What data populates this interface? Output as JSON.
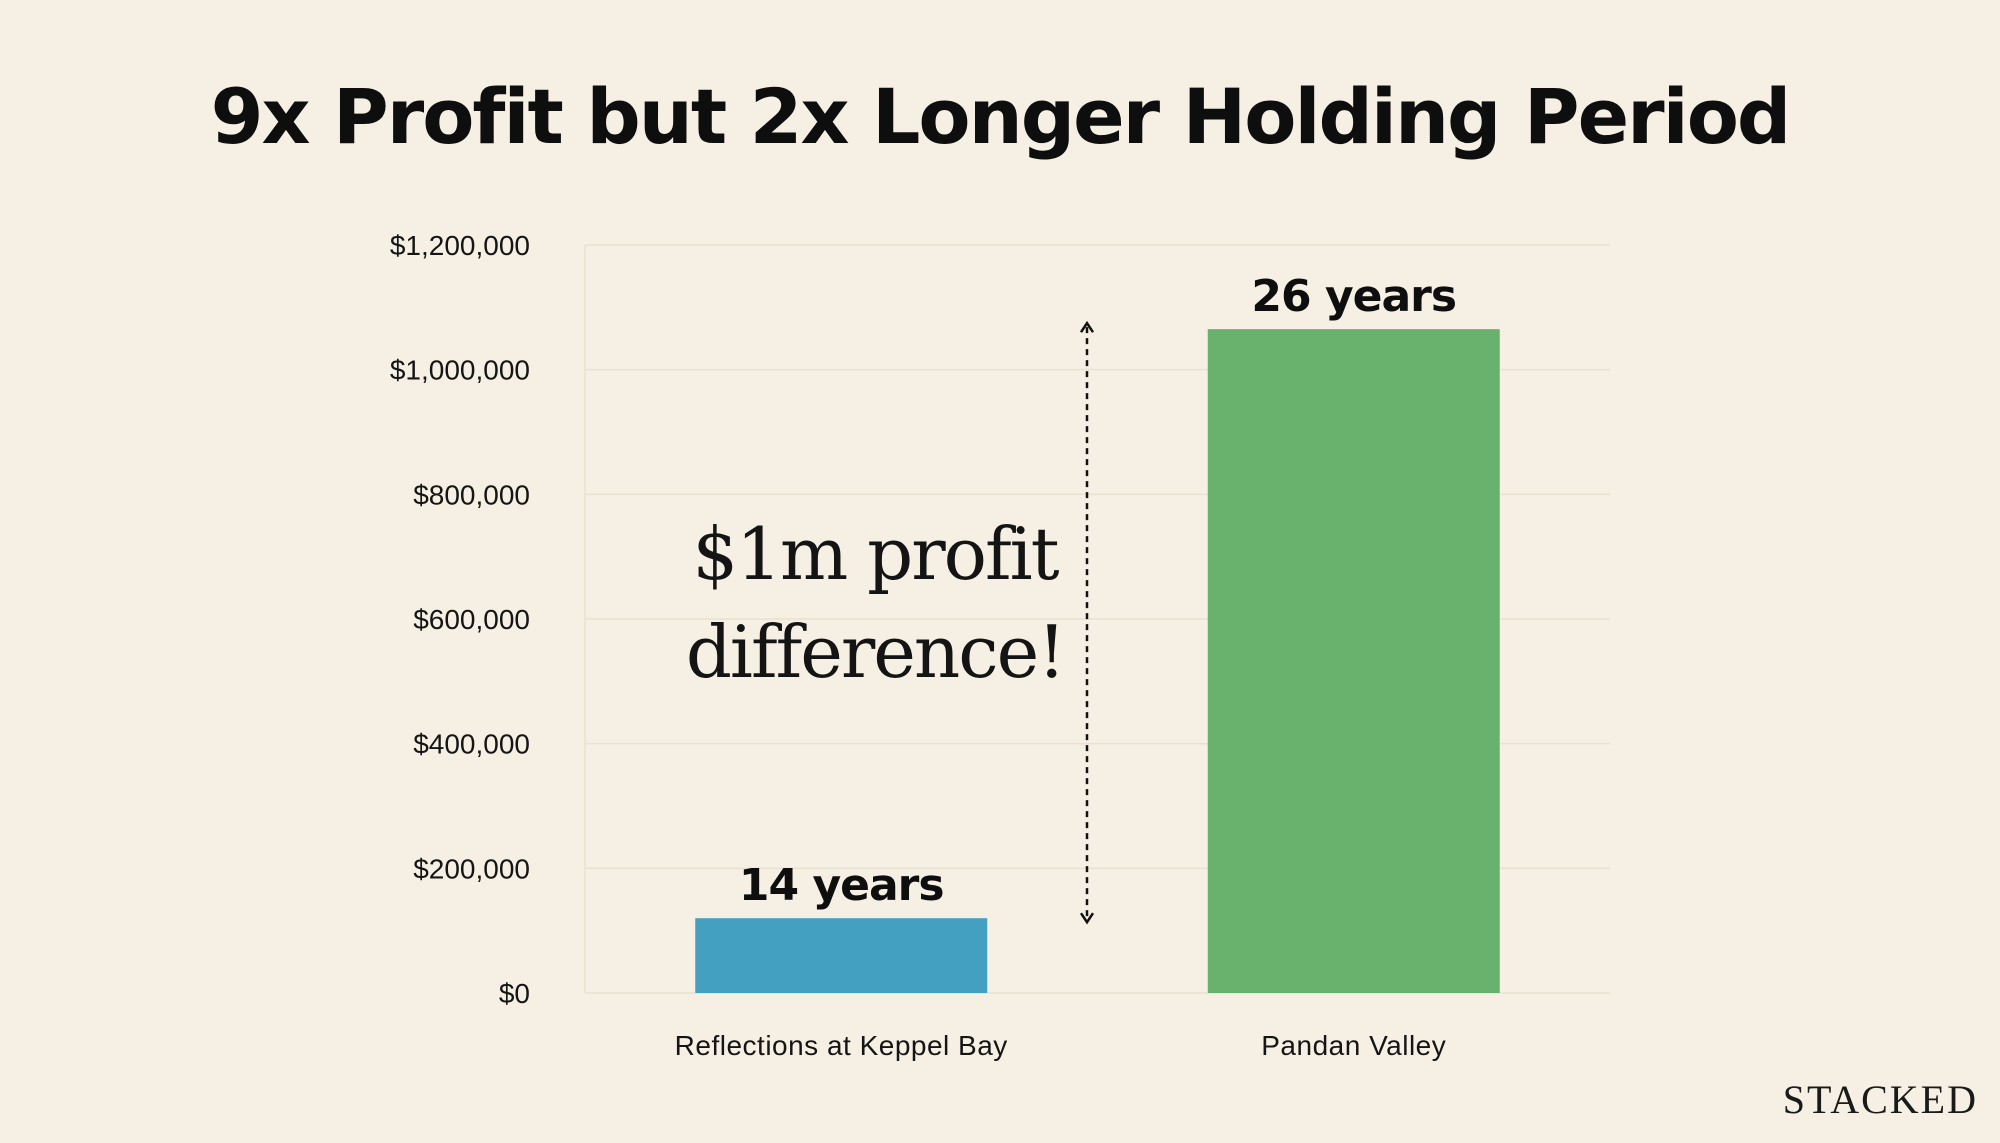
{
  "page": {
    "title": "9x Profit but 2x Longer Holding Period"
  },
  "annotation": {
    "line1": "$1m profit",
    "line2": "difference!"
  },
  "brand": "STACKED",
  "colors": {
    "background": "#f6f0e4",
    "gridline": "#e9e1d1",
    "arrow": "#111111"
  },
  "chart_data": {
    "type": "bar",
    "title": "9x Profit but 2x Longer Holding Period",
    "xlabel": "",
    "ylabel": "",
    "categories": [
      "Reflections at Keppel Bay",
      "Pandan Valley"
    ],
    "values": [
      120000,
      1065000
    ],
    "data_labels": [
      "14 years",
      "26 years"
    ],
    "bar_colors": [
      "#44a0c0",
      "#69b26d"
    ],
    "ylim": [
      0,
      1200000
    ],
    "yticks": [
      0,
      200000,
      400000,
      600000,
      800000,
      1000000,
      1200000
    ],
    "ytick_labels": [
      "$0",
      "$200,000",
      "$400,000",
      "$600,000",
      "$800,000",
      "$1,000,000",
      "$1,200,000"
    ],
    "grid": true,
    "legend": "none"
  }
}
